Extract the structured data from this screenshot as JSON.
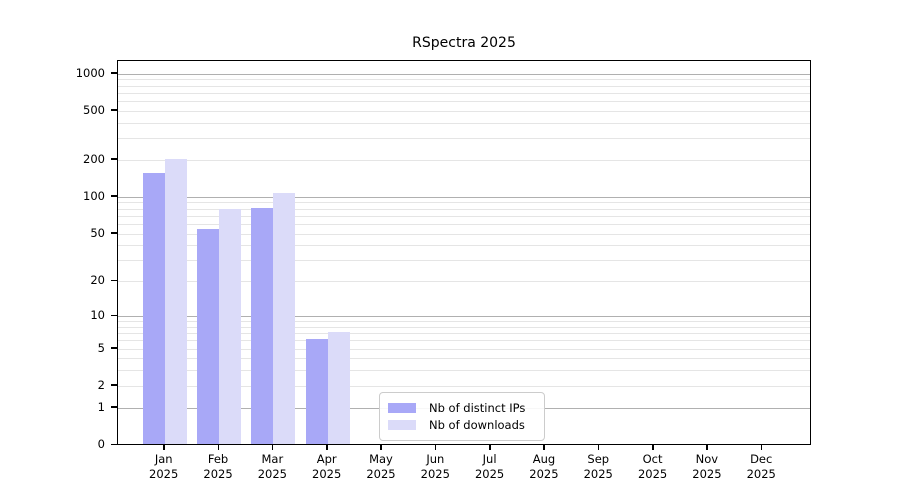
{
  "chart_data": {
    "type": "bar",
    "title": "RSpectra 2025",
    "categories": [
      "Jan 2025",
      "Feb 2025",
      "Mar 2025",
      "Apr 2025",
      "May 2025",
      "Jun 2025",
      "Jul 2025",
      "Aug 2025",
      "Sep 2025",
      "Oct 2025",
      "Nov 2025",
      "Dec 2025"
    ],
    "series": [
      {
        "name": "Nb of distinct IPs",
        "color": "#a8a8f7",
        "values": [
          155,
          54,
          80,
          6,
          null,
          null,
          null,
          null,
          null,
          null,
          null,
          null
        ]
      },
      {
        "name": "Nb of downloads",
        "color": "#dbdbf9",
        "values": [
          200,
          78,
          106,
          7,
          null,
          null,
          null,
          null,
          null,
          null,
          null,
          null
        ]
      }
    ],
    "xlabel": "",
    "ylabel": "",
    "y_scale": "log10(value+1)",
    "y_ticks": [
      0,
      1,
      2,
      5,
      10,
      20,
      50,
      100,
      200,
      500,
      1000
    ],
    "major_gridlines": [
      1,
      10,
      100,
      1000
    ],
    "minor_gridlines": [
      2,
      3,
      4,
      5,
      6,
      7,
      8,
      9,
      20,
      30,
      40,
      50,
      60,
      70,
      80,
      90,
      200,
      300,
      400,
      500,
      600,
      700,
      800,
      900
    ],
    "ylim": [
      0,
      1263
    ],
    "grid": true,
    "legend_position": "lower center-left inside plot"
  },
  "colors": {
    "series_distinct_ips": "#a8a8f7",
    "series_downloads": "#dbdbf9",
    "major_grid": "#b0b0b0",
    "minor_grid": "#e5e5e5",
    "spine": "#000000",
    "text": "#000000",
    "legend_border": "#cccccc",
    "background": "#ffffff"
  }
}
